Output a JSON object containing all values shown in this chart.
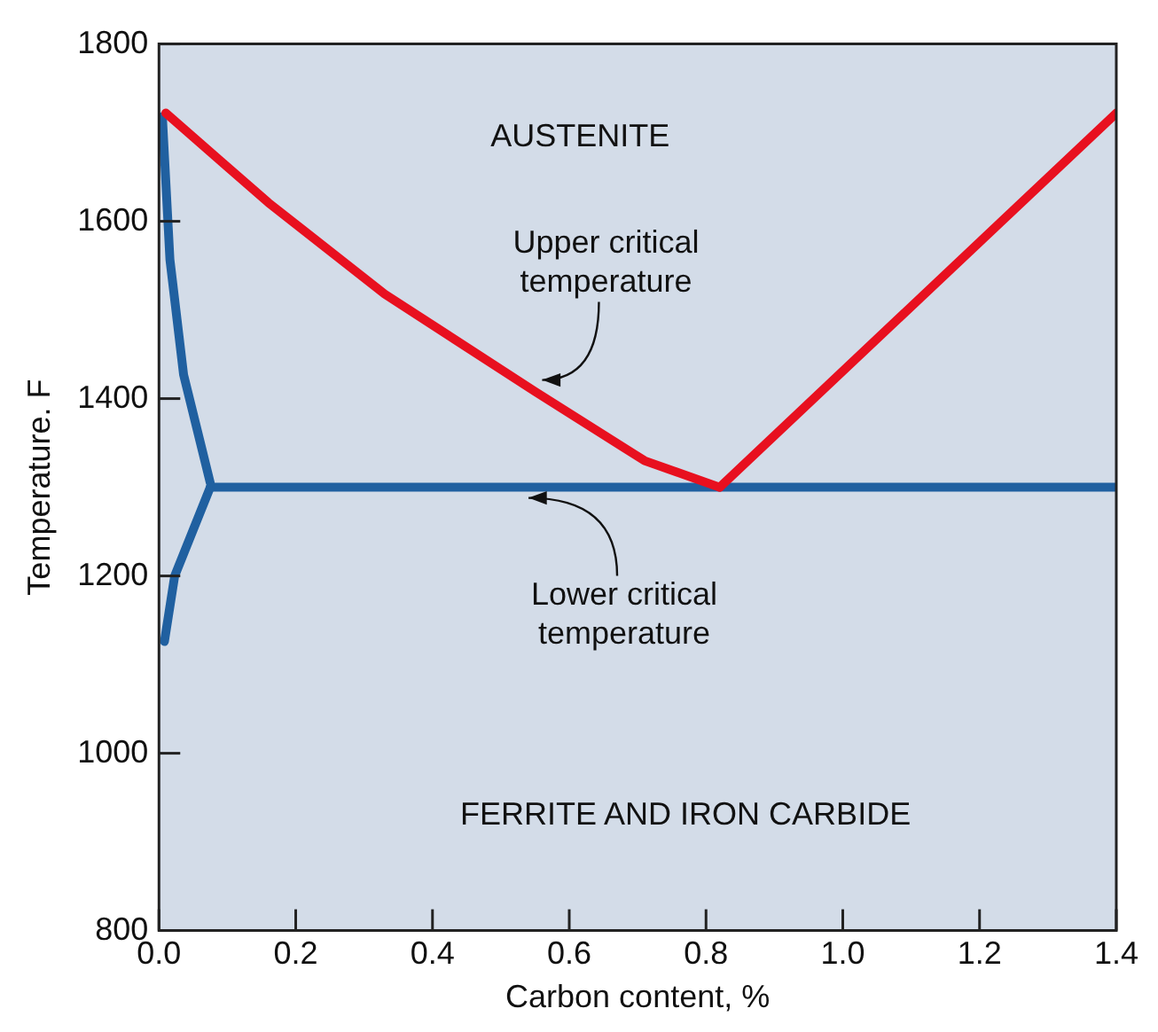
{
  "chart_data": {
    "type": "line",
    "xlabel": "Carbon content, %",
    "ylabel": "Temperature. F",
    "xlim": [
      0,
      1.4
    ],
    "xticks": [
      {
        "value": 0,
        "label": "0.0"
      },
      0.2,
      0.4,
      0.6,
      0.8,
      {
        "value": 1,
        "label": "1.0"
      },
      1.2,
      1.4
    ],
    "ylim": [
      800,
      1800
    ],
    "yticks": [
      800,
      1000,
      1200,
      1400,
      1600,
      1800
    ],
    "marker": "none",
    "line_style": "solid",
    "series": [
      {
        "color": "#e8101f",
        "x": [
          0.01,
          0.16,
          0.33,
          0.55,
          0.71,
          0.82
        ],
        "values": [
          1722,
          1621,
          1518,
          1408,
          1330,
          1300
        ]
      },
      {
        "color": "#e8101f",
        "x": [
          0.82,
          1.4
        ],
        "values": [
          1300,
          1722
        ]
      },
      {
        "color": "#2060a0",
        "x": [
          0.005,
          0.016,
          0.036,
          0.075
        ],
        "values": [
          1718,
          1557,
          1427,
          1305
        ]
      },
      {
        "color": "#2060a0",
        "x": [
          0.008,
          0.023,
          0.075
        ],
        "values": [
          1126,
          1200,
          1300
        ]
      },
      {
        "color": "#2060a0",
        "x": [
          0.075,
          1.4
        ],
        "values": [
          1300,
          1300
        ]
      }
    ],
    "annotations": [
      "AUSTENITE",
      "FERRITE AND IRON CARBIDE",
      {
        "text": "Upper critical\ntemperature",
        "x": 0.55,
        "y": 1413
      },
      {
        "text": "Lower critical\ntemperature",
        "x": 0.53,
        "y": 1300
      }
    ]
  }
}
